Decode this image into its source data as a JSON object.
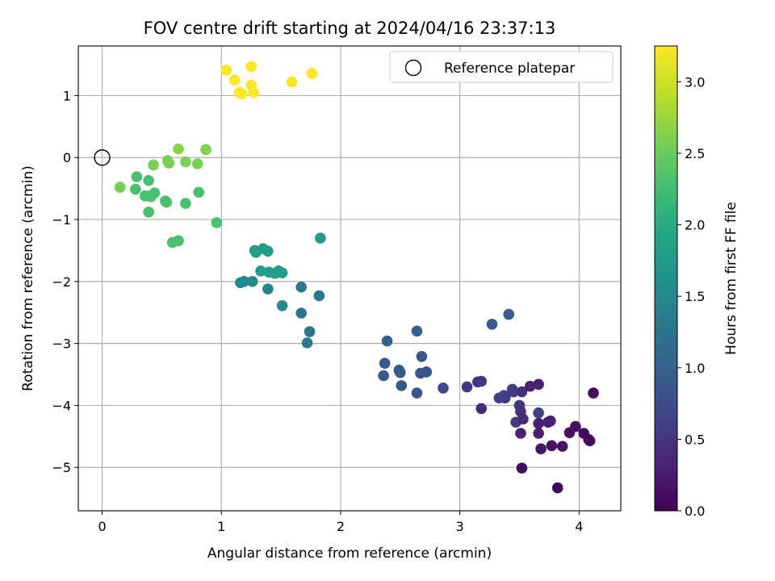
{
  "chart_data": {
    "type": "scatter",
    "title": "FOV centre drift starting at 2024/04/16 23:37:13",
    "xlabel": "Angular distance from reference (arcmin)",
    "ylabel": "Rotation from reference (arcmin)",
    "xlim": [
      -0.2,
      4.35
    ],
    "ylim": [
      -5.7,
      1.8
    ],
    "xticks": [
      0,
      1,
      2,
      3,
      4
    ],
    "xtick_labels": [
      "0",
      "1",
      "2",
      "3",
      "4"
    ],
    "yticks": [
      1,
      0,
      -1,
      -2,
      -3,
      -4,
      -5
    ],
    "ytick_labels": [
      "1",
      "0",
      "−1",
      "−2",
      "−3",
      "−4",
      "−5"
    ],
    "grid": true,
    "colormap": "viridis",
    "colorbar": {
      "label": "Hours from first FF file",
      "min": 0.0,
      "max": 3.25,
      "ticks": [
        0.0,
        0.5,
        1.0,
        1.5,
        2.0,
        2.5,
        3.0
      ],
      "tick_labels": [
        "0.0",
        "0.5",
        "1.0",
        "1.5",
        "2.0",
        "2.5",
        "3.0"
      ]
    },
    "legend": {
      "placement": "top-right",
      "entries": [
        {
          "label": "Reference platepar",
          "marker": "open-circle",
          "x": 0,
          "y": 0
        }
      ]
    },
    "points": [
      [
        1.04,
        1.41,
        3.25
      ],
      [
        1.11,
        1.25,
        3.25
      ],
      [
        1.15,
        1.05,
        3.25
      ],
      [
        1.17,
        1.03,
        3.25
      ],
      [
        1.25,
        1.47,
        3.25
      ],
      [
        1.25,
        1.17,
        3.25
      ],
      [
        1.27,
        1.05,
        3.25
      ],
      [
        1.59,
        1.22,
        3.25
      ],
      [
        1.76,
        1.36,
        3.25
      ],
      [
        0.64,
        0.14,
        2.65
      ],
      [
        0.87,
        0.13,
        2.65
      ],
      [
        0.55,
        -0.05,
        2.6
      ],
      [
        0.56,
        -0.09,
        2.6
      ],
      [
        0.7,
        -0.07,
        2.6
      ],
      [
        0.8,
        -0.1,
        2.6
      ],
      [
        0.43,
        -0.12,
        2.6
      ],
      [
        0.15,
        -0.48,
        2.55
      ],
      [
        0.29,
        -0.31,
        2.3
      ],
      [
        0.39,
        -0.37,
        2.3
      ],
      [
        0.28,
        -0.51,
        2.3
      ],
      [
        0.36,
        -0.62,
        2.3
      ],
      [
        0.44,
        -0.57,
        2.3
      ],
      [
        0.41,
        -0.63,
        2.3
      ],
      [
        0.4,
        -0.62,
        2.3
      ],
      [
        0.53,
        -0.7,
        2.3
      ],
      [
        0.54,
        -0.72,
        2.3
      ],
      [
        0.7,
        -0.74,
        2.3
      ],
      [
        0.81,
        -0.56,
        2.3
      ],
      [
        0.39,
        -0.88,
        2.3
      ],
      [
        0.96,
        -1.05,
        2.3
      ],
      [
        0.59,
        -1.37,
        2.3
      ],
      [
        0.64,
        -1.34,
        2.3
      ],
      [
        1.83,
        -1.3,
        1.8
      ],
      [
        1.28,
        -1.5,
        1.8
      ],
      [
        1.29,
        -1.53,
        1.8
      ],
      [
        1.35,
        -1.47,
        1.8
      ],
      [
        1.39,
        -1.51,
        1.8
      ],
      [
        1.33,
        -1.83,
        1.8
      ],
      [
        1.4,
        -1.85,
        1.8
      ],
      [
        1.45,
        -1.87,
        1.8
      ],
      [
        1.48,
        -1.83,
        1.8
      ],
      [
        1.51,
        -1.86,
        1.8
      ],
      [
        1.16,
        -2.02,
        1.5
      ],
      [
        1.19,
        -2.0,
        1.5
      ],
      [
        1.26,
        -2.0,
        1.5
      ],
      [
        1.39,
        -2.12,
        1.5
      ],
      [
        1.51,
        -2.39,
        1.5
      ],
      [
        1.67,
        -2.09,
        1.3
      ],
      [
        1.82,
        -2.23,
        1.3
      ],
      [
        1.67,
        -2.51,
        1.3
      ],
      [
        1.74,
        -2.81,
        1.3
      ],
      [
        1.72,
        -2.99,
        1.3
      ],
      [
        2.39,
        -2.96,
        1.0
      ],
      [
        2.64,
        -2.8,
        1.0
      ],
      [
        3.27,
        -2.69,
        0.95
      ],
      [
        3.41,
        -2.53,
        0.95
      ],
      [
        2.37,
        -3.32,
        0.9
      ],
      [
        2.49,
        -3.43,
        0.9
      ],
      [
        2.5,
        -3.47,
        0.9
      ],
      [
        2.36,
        -3.52,
        0.9
      ],
      [
        2.51,
        -3.68,
        0.9
      ],
      [
        2.68,
        -3.21,
        0.85
      ],
      [
        2.67,
        -3.48,
        0.85
      ],
      [
        2.72,
        -3.46,
        0.85
      ],
      [
        2.64,
        -3.8,
        0.85
      ],
      [
        2.86,
        -3.72,
        0.7
      ],
      [
        3.06,
        -3.7,
        0.5
      ],
      [
        3.15,
        -3.62,
        0.5
      ],
      [
        3.18,
        -3.61,
        0.5
      ],
      [
        3.18,
        -4.05,
        0.4
      ],
      [
        3.33,
        -3.88,
        0.6
      ],
      [
        3.37,
        -3.84,
        0.6
      ],
      [
        3.38,
        -3.88,
        0.6
      ],
      [
        3.44,
        -3.74,
        0.6
      ],
      [
        3.45,
        -3.78,
        0.55
      ],
      [
        3.52,
        -3.78,
        0.45
      ],
      [
        3.47,
        -4.27,
        0.55
      ],
      [
        3.5,
        -4.0,
        0.5
      ],
      [
        3.51,
        -4.1,
        0.45
      ],
      [
        3.53,
        -4.22,
        0.4
      ],
      [
        3.51,
        -4.45,
        0.3
      ],
      [
        3.59,
        -3.69,
        0.3
      ],
      [
        3.66,
        -3.66,
        0.3
      ],
      [
        3.66,
        -4.12,
        0.6
      ],
      [
        3.66,
        -4.29,
        0.3
      ],
      [
        3.66,
        -4.45,
        0.3
      ],
      [
        3.74,
        -4.27,
        0.3
      ],
      [
        3.76,
        -4.25,
        0.3
      ],
      [
        3.68,
        -4.7,
        0.2
      ],
      [
        3.77,
        -4.65,
        0.15
      ],
      [
        3.86,
        -4.66,
        0.15
      ],
      [
        3.92,
        -4.44,
        0.15
      ],
      [
        3.97,
        -4.34,
        0.15
      ],
      [
        4.04,
        -4.45,
        0.1
      ],
      [
        4.08,
        -4.55,
        0.1
      ],
      [
        4.09,
        -4.57,
        0.1
      ],
      [
        4.12,
        -3.8,
        0.1
      ],
      [
        3.52,
        -5.01,
        0.1
      ],
      [
        3.82,
        -5.33,
        0.05
      ]
    ]
  }
}
